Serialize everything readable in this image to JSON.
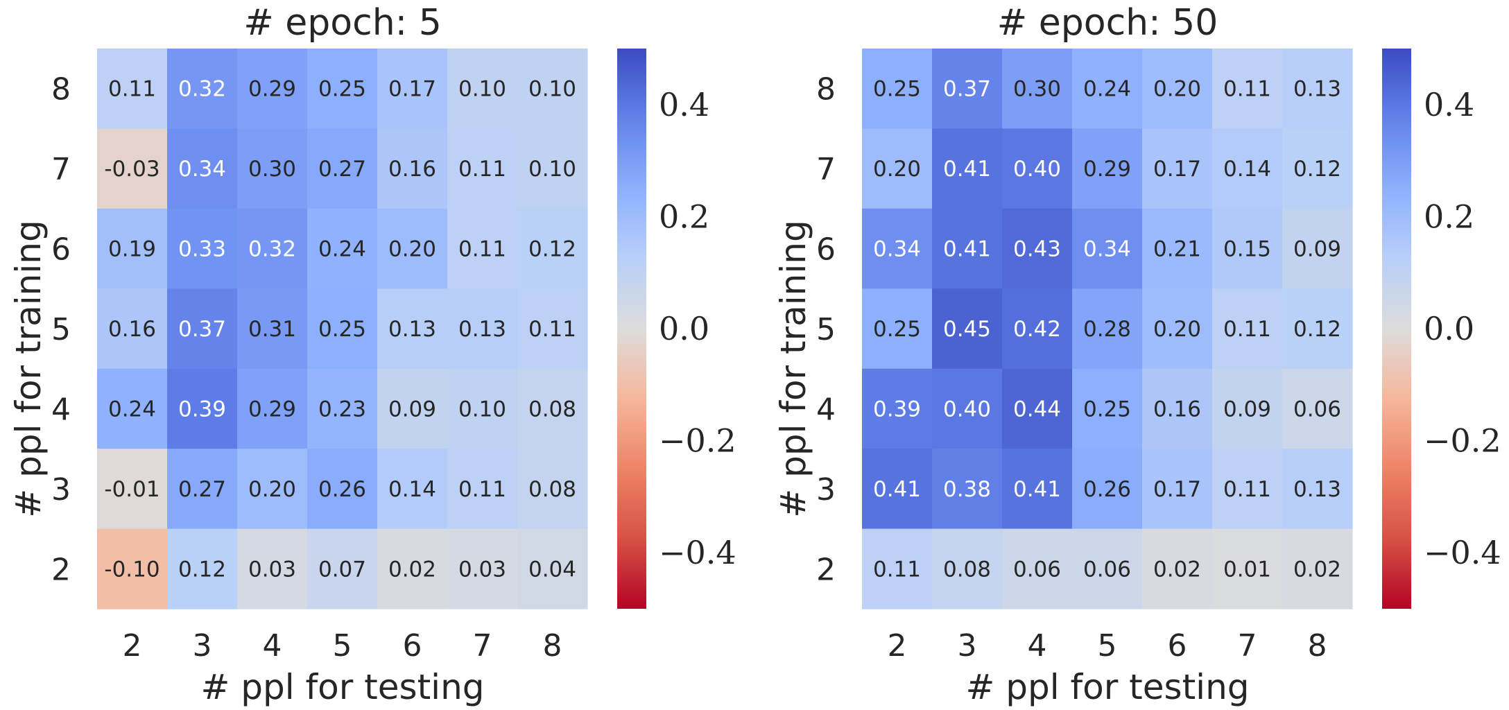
{
  "chart_data": [
    {
      "type": "heatmap",
      "title": "# epoch: 5",
      "xlabel": "# ppl for testing",
      "ylabel": "# ppl for training",
      "x": [
        "2",
        "3",
        "4",
        "5",
        "6",
        "7",
        "8"
      ],
      "y": [
        "8",
        "7",
        "6",
        "5",
        "4",
        "3",
        "2"
      ],
      "values": [
        [
          0.11,
          0.32,
          0.29,
          0.25,
          0.17,
          0.1,
          0.1
        ],
        [
          -0.03,
          0.34,
          0.3,
          0.27,
          0.16,
          0.11,
          0.1
        ],
        [
          0.19,
          0.33,
          0.32,
          0.24,
          0.2,
          0.11,
          0.12
        ],
        [
          0.16,
          0.37,
          0.31,
          0.25,
          0.13,
          0.13,
          0.11
        ],
        [
          0.24,
          0.39,
          0.29,
          0.23,
          0.09,
          0.1,
          0.08
        ],
        [
          -0.01,
          0.27,
          0.2,
          0.26,
          0.14,
          0.11,
          0.08
        ],
        [
          -0.1,
          0.12,
          0.03,
          0.07,
          0.02,
          0.03,
          0.04
        ]
      ],
      "labels": [
        [
          "0.11",
          "0.32",
          "0.29",
          "0.25",
          "0.17",
          "0.10",
          "0.10"
        ],
        [
          "-0.03",
          "0.34",
          "0.30",
          "0.27",
          "0.16",
          "0.11",
          "0.10"
        ],
        [
          "0.19",
          "0.33",
          "0.32",
          "0.24",
          "0.20",
          "0.11",
          "0.12"
        ],
        [
          "0.16",
          "0.37",
          "0.31",
          "0.25",
          "0.13",
          "0.13",
          "0.11"
        ],
        [
          "0.24",
          "0.39",
          "0.29",
          "0.23",
          "0.09",
          "0.10",
          "0.08"
        ],
        [
          "-0.01",
          "0.27",
          "0.20",
          "0.26",
          "0.14",
          "0.11",
          "0.08"
        ],
        [
          "-0.10",
          "0.12",
          "0.03",
          "0.07",
          "0.02",
          "0.03",
          "0.04"
        ]
      ],
      "colormap": "coolwarm",
      "vmin": -0.5,
      "vmax": 0.5,
      "colorbar_ticks": [
        0.4,
        0.2,
        0.0,
        -0.2,
        -0.4
      ],
      "colorbar_tick_labels": [
        "0.4",
        "0.2",
        "0.0",
        "−0.2",
        "−0.4"
      ]
    },
    {
      "type": "heatmap",
      "title": "# epoch: 50",
      "xlabel": "# ppl for testing",
      "ylabel": "# ppl for training",
      "x": [
        "2",
        "3",
        "4",
        "5",
        "6",
        "7",
        "8"
      ],
      "y": [
        "8",
        "7",
        "6",
        "5",
        "4",
        "3",
        "2"
      ],
      "values": [
        [
          0.25,
          0.37,
          0.3,
          0.24,
          0.2,
          0.11,
          0.13
        ],
        [
          0.2,
          0.41,
          0.4,
          0.29,
          0.17,
          0.14,
          0.12
        ],
        [
          0.34,
          0.41,
          0.43,
          0.34,
          0.21,
          0.15,
          0.09
        ],
        [
          0.25,
          0.45,
          0.42,
          0.28,
          0.2,
          0.11,
          0.12
        ],
        [
          0.39,
          0.4,
          0.44,
          0.25,
          0.16,
          0.09,
          0.06
        ],
        [
          0.41,
          0.38,
          0.41,
          0.26,
          0.17,
          0.11,
          0.13
        ],
        [
          0.11,
          0.08,
          0.06,
          0.06,
          0.02,
          0.01,
          0.02
        ]
      ],
      "labels": [
        [
          "0.25",
          "0.37",
          "0.30",
          "0.24",
          "0.20",
          "0.11",
          "0.13"
        ],
        [
          "0.20",
          "0.41",
          "0.40",
          "0.29",
          "0.17",
          "0.14",
          "0.12"
        ],
        [
          "0.34",
          "0.41",
          "0.43",
          "0.34",
          "0.21",
          "0.15",
          "0.09"
        ],
        [
          "0.25",
          "0.45",
          "0.42",
          "0.28",
          "0.20",
          "0.11",
          "0.12"
        ],
        [
          "0.39",
          "0.40",
          "0.44",
          "0.25",
          "0.16",
          "0.09",
          "0.06"
        ],
        [
          "0.41",
          "0.38",
          "0.41",
          "0.26",
          "0.17",
          "0.11",
          "0.13"
        ],
        [
          "0.11",
          "0.08",
          "0.06",
          "0.06",
          "0.02",
          "0.01",
          "0.02"
        ]
      ],
      "colormap": "coolwarm",
      "vmin": -0.5,
      "vmax": 0.5,
      "colorbar_ticks": [
        0.4,
        0.2,
        0.0,
        -0.2,
        -0.4
      ],
      "colorbar_tick_labels": [
        "0.4",
        "0.2",
        "0.0",
        "−0.2",
        "−0.4"
      ]
    }
  ]
}
